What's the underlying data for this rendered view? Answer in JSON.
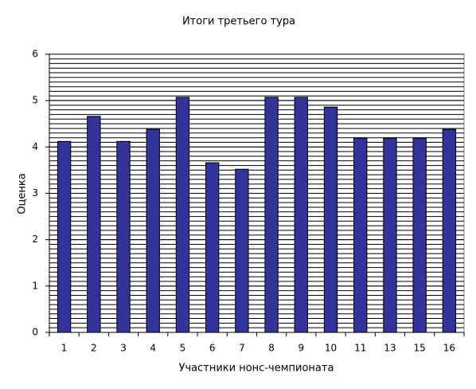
{
  "chart_data": {
    "type": "bar",
    "title": "Итоги третьего тура",
    "x_label": "Участники нонс-чемпионата",
    "y_label": "Оценка",
    "categories": [
      "1",
      "2",
      "3",
      "4",
      "5",
      "6",
      "7",
      "8",
      "9",
      "10",
      "11",
      "13",
      "15",
      "16"
    ],
    "values": [
      4.12,
      4.66,
      4.12,
      4.38,
      5.07,
      3.66,
      3.52,
      5.07,
      5.07,
      4.86,
      4.19,
      4.19,
      4.19,
      4.38
    ],
    "color": "#333399",
    "ylim": [
      0,
      6
    ],
    "yticks": [
      0,
      1,
      2,
      3,
      4,
      5,
      6
    ],
    "grid": true,
    "grid_step": 0.1
  }
}
